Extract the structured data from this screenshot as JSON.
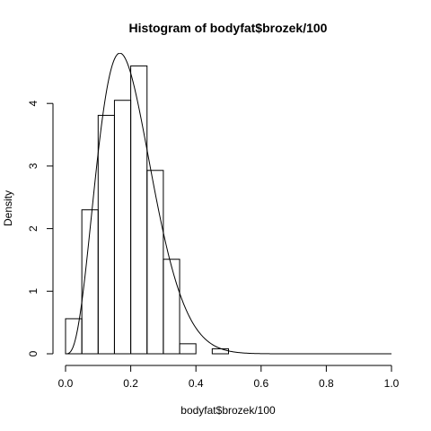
{
  "chart_data": {
    "type": "bar",
    "title": "Histogram of bodyfat$brozek/100",
    "xlabel": "bodyfat$brozek/100",
    "ylabel": "Density",
    "xlim": [
      0.0,
      1.0
    ],
    "ylim": [
      0,
      4.85
    ],
    "grid": false,
    "xticks": [
      "0.0",
      "0.2",
      "0.4",
      "0.6",
      "0.8",
      "1.0"
    ],
    "yticks": [
      "0",
      "1",
      "2",
      "3",
      "4"
    ],
    "xtick_values": [
      0.0,
      0.2,
      0.4,
      0.6,
      0.8,
      1.0
    ],
    "ytick_values": [
      0,
      1,
      2,
      3,
      4
    ],
    "bins": [
      {
        "x0": 0.0,
        "x1": 0.05,
        "density": 0.56
      },
      {
        "x0": 0.05,
        "x1": 0.1,
        "density": 2.3
      },
      {
        "x0": 0.1,
        "x1": 0.15,
        "density": 3.81
      },
      {
        "x0": 0.15,
        "x1": 0.2,
        "density": 4.05
      },
      {
        "x0": 0.2,
        "x1": 0.25,
        "density": 4.6
      },
      {
        "x0": 0.25,
        "x1": 0.3,
        "density": 2.93
      },
      {
        "x0": 0.3,
        "x1": 0.35,
        "density": 1.51
      },
      {
        "x0": 0.35,
        "x1": 0.4,
        "density": 0.16
      },
      {
        "x0": 0.4,
        "x1": 0.45,
        "density": 0.0
      },
      {
        "x0": 0.45,
        "x1": 0.5,
        "density": 0.08
      }
    ],
    "curve": {
      "kind": "beta density",
      "shape1": 4.2,
      "shape2": 17,
      "range": [
        0.0,
        1.0
      ]
    }
  }
}
